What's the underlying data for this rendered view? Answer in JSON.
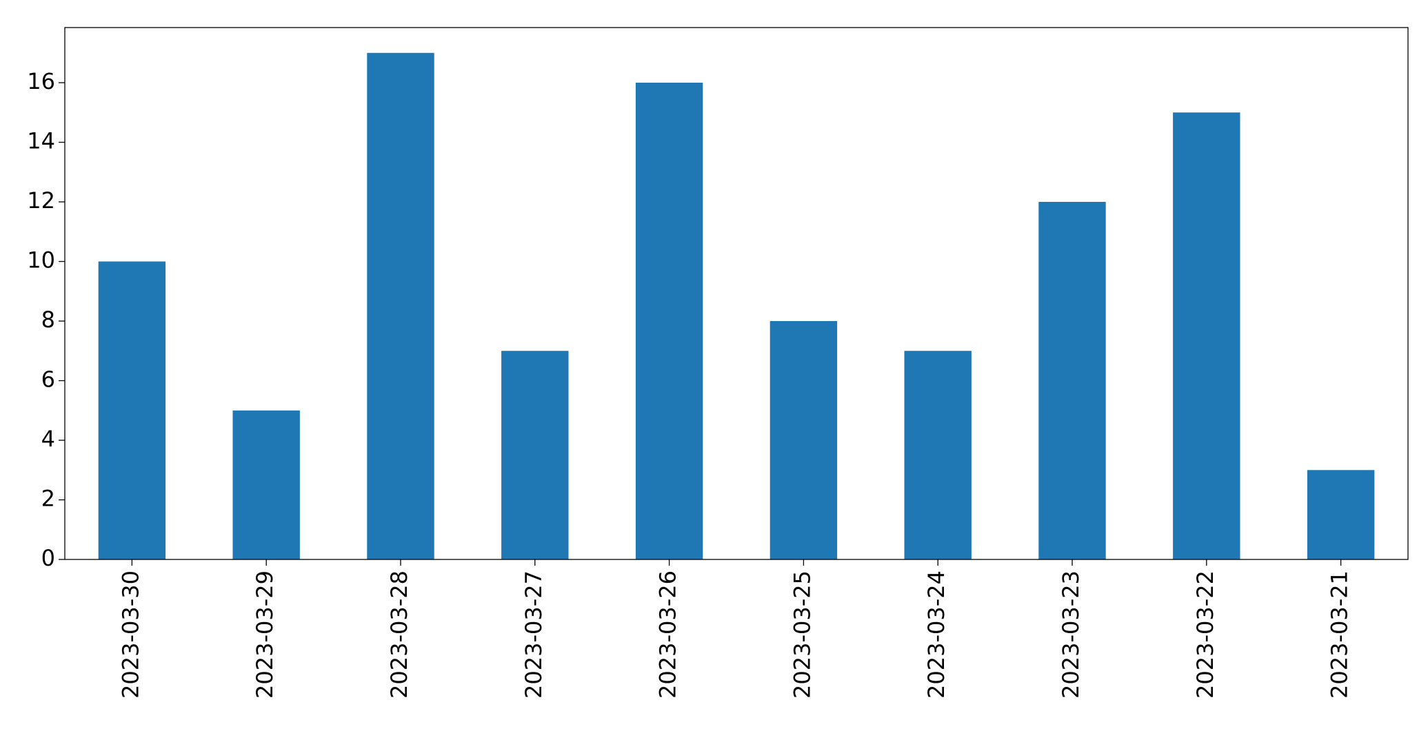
{
  "chart_data": {
    "type": "bar",
    "categories": [
      "2023-03-30",
      "2023-03-29",
      "2023-03-28",
      "2023-03-27",
      "2023-03-26",
      "2023-03-25",
      "2023-03-24",
      "2023-03-23",
      "2023-03-22",
      "2023-03-21"
    ],
    "values": [
      10,
      5,
      17,
      7,
      16,
      8,
      7,
      12,
      15,
      3
    ],
    "color": "#1f77b4",
    "ylim": [
      0,
      17.85
    ],
    "yticks": [
      0,
      2,
      4,
      6,
      8,
      10,
      12,
      14,
      16
    ],
    "grid": false
  }
}
